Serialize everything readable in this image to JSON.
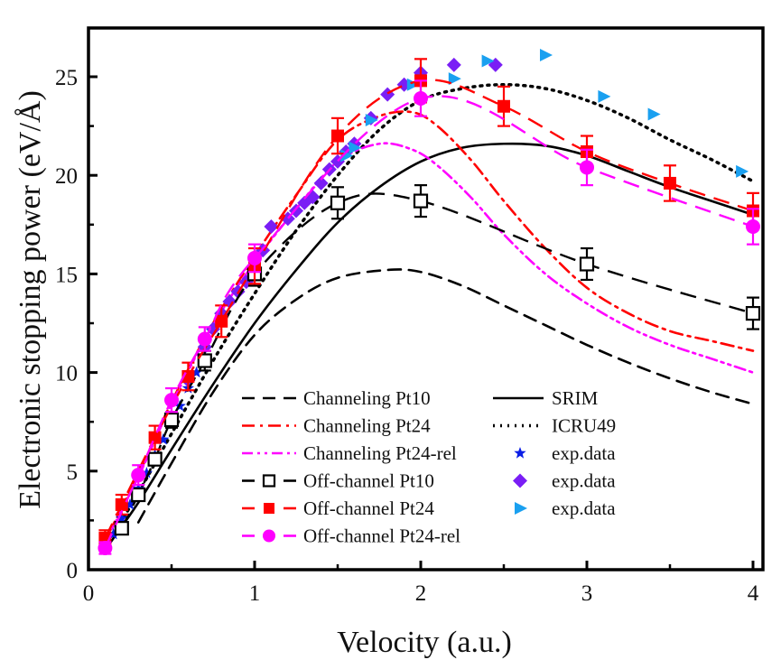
{
  "chart_data": {
    "type": "line",
    "title": "",
    "xlabel": "Velocity (a.u.)",
    "ylabel": "Electronic stopping power (eV/Å)",
    "xlim": [
      0,
      4.06
    ],
    "ylim": [
      0,
      27.5
    ],
    "xticks": [
      0,
      1,
      2,
      3,
      4
    ],
    "xtick_labels": [
      "0",
      "1",
      "2",
      "3",
      "4"
    ],
    "xminor": [
      0.5,
      1.5,
      2.5,
      3.5
    ],
    "yticks": [
      0,
      5,
      10,
      15,
      20,
      25
    ],
    "ytick_labels": [
      "0",
      "5",
      "10",
      "15",
      "20",
      "25"
    ],
    "yminor": [
      2.5,
      7.5,
      12.5,
      17.5,
      22.5
    ],
    "grid": false,
    "legend_position": "bottom-center",
    "series": [
      {
        "name": "Channeling Pt10",
        "kind": "line",
        "style": "dashed",
        "color": "#000000",
        "x": [
          0.3,
          0.5,
          0.75,
          1.0,
          1.25,
          1.5,
          1.8,
          2.0,
          2.25,
          2.5,
          2.75,
          3.0,
          3.25,
          3.5,
          3.75,
          4.0
        ],
        "y": [
          2.4,
          5.4,
          9.0,
          11.9,
          13.7,
          14.8,
          15.2,
          15.1,
          14.4,
          13.4,
          12.4,
          11.4,
          10.5,
          9.7,
          9.0,
          8.4
        ]
      },
      {
        "name": "Channeling Pt24",
        "kind": "line",
        "style": "dash-dot",
        "color": "#ff0000",
        "x": [
          0.1,
          0.3,
          0.5,
          0.75,
          1.0,
          1.25,
          1.5,
          1.75,
          1.95,
          2.1,
          2.3,
          2.5,
          2.75,
          3.0,
          3.25,
          3.5,
          3.75,
          4.0
        ],
        "y": [
          1.5,
          4.8,
          8.5,
          12.5,
          15.9,
          19.0,
          21.8,
          23.0,
          23.2,
          22.5,
          20.8,
          18.7,
          16.3,
          14.3,
          13.0,
          12.1,
          11.6,
          11.1
        ]
      },
      {
        "name": "Channeling Pt24-rel",
        "kind": "line",
        "style": "dash-dot-dot",
        "color": "#ff00ff",
        "x": [
          0.1,
          0.3,
          0.5,
          0.75,
          1.0,
          1.25,
          1.5,
          1.75,
          1.95,
          2.1,
          2.3,
          2.5,
          2.75,
          3.0,
          3.25,
          3.5,
          3.75,
          4.0
        ],
        "y": [
          1.4,
          4.7,
          8.4,
          12.4,
          15.6,
          18.3,
          20.7,
          21.6,
          21.3,
          20.5,
          18.9,
          17.0,
          15.0,
          13.5,
          12.3,
          11.4,
          10.7,
          10.0
        ]
      },
      {
        "name": "SRIM",
        "kind": "line",
        "style": "solid",
        "color": "#000000",
        "x": [
          0.1,
          0.3,
          0.5,
          0.75,
          1.0,
          1.25,
          1.5,
          1.75,
          2.0,
          2.25,
          2.5,
          2.75,
          3.0,
          3.25,
          3.5,
          3.75,
          4.0
        ],
        "y": [
          1.0,
          3.4,
          6.1,
          9.4,
          12.5,
          15.2,
          17.6,
          19.4,
          20.7,
          21.4,
          21.6,
          21.5,
          21.0,
          20.2,
          19.4,
          18.7,
          18.0
        ]
      },
      {
        "name": "ICRU49",
        "kind": "line",
        "style": "dotted",
        "color": "#000000",
        "x": [
          0.1,
          0.3,
          0.5,
          0.75,
          1.0,
          1.25,
          1.5,
          1.75,
          2.0,
          2.25,
          2.5,
          2.75,
          3.0,
          3.25,
          3.5,
          3.75,
          4.0
        ],
        "y": [
          1.1,
          3.9,
          6.9,
          10.6,
          14.0,
          17.2,
          20.0,
          22.3,
          23.8,
          24.4,
          24.6,
          24.4,
          23.8,
          22.9,
          21.8,
          20.8,
          19.7
        ]
      },
      {
        "name": "Off-channel Pt10",
        "kind": "marker-line",
        "style": "long-dash",
        "marker": "open-square",
        "color": "#000000",
        "x": [
          0.2,
          0.3,
          0.4,
          0.5,
          0.7,
          1.0,
          1.5,
          2.0,
          3.0,
          4.0
        ],
        "y": [
          2.1,
          3.8,
          5.6,
          7.6,
          10.6,
          15.0,
          18.6,
          18.7,
          15.5,
          13.0
        ],
        "err": [
          0.3,
          0.3,
          0.3,
          0.4,
          0.5,
          0.6,
          0.8,
          0.8,
          0.8,
          0.8
        ]
      },
      {
        "name": "Off-channel Pt24",
        "kind": "marker-line",
        "style": "long-dash",
        "marker": "filled-square",
        "color": "#ff0000",
        "x": [
          0.1,
          0.2,
          0.4,
          0.6,
          0.8,
          1.0,
          1.5,
          2.0,
          2.5,
          3.0,
          3.5,
          4.0
        ],
        "y": [
          1.6,
          3.3,
          6.7,
          9.8,
          12.6,
          15.4,
          22.0,
          24.8,
          23.5,
          21.2,
          19.6,
          18.2
        ],
        "err": [
          0.4,
          0.5,
          0.6,
          0.7,
          0.8,
          0.9,
          0.9,
          1.1,
          1.0,
          0.8,
          0.9,
          0.9
        ]
      },
      {
        "name": "Off-channel Pt24-rel",
        "kind": "marker-line",
        "style": "long-dash",
        "marker": "filled-circle",
        "color": "#ff00ff",
        "x": [
          0.1,
          0.3,
          0.5,
          0.7,
          1.0,
          2.0,
          3.0,
          4.0
        ],
        "y": [
          1.1,
          4.8,
          8.6,
          11.7,
          15.8,
          23.9,
          20.4,
          17.4
        ],
        "err": [
          0.3,
          0.5,
          0.6,
          0.6,
          0.7,
          0.9,
          0.9,
          0.9
        ]
      },
      {
        "name": "exp.data",
        "kind": "scatter",
        "marker": "star",
        "color": "#0a1ee6",
        "x": [
          0.1,
          0.15,
          0.2,
          0.25,
          0.3,
          0.35,
          0.4,
          0.45,
          0.5,
          0.55,
          0.6,
          0.65
        ],
        "y": [
          1.0,
          1.8,
          2.6,
          3.3,
          4.1,
          4.9,
          5.8,
          6.6,
          7.5,
          8.3,
          9.2,
          10.0
        ]
      },
      {
        "name": "exp.data",
        "kind": "scatter",
        "marker": "diamond",
        "color": "#7a1ef5",
        "x": [
          0.6,
          0.7,
          0.75,
          0.8,
          0.85,
          0.9,
          0.95,
          1.0,
          1.05,
          1.1,
          1.2,
          1.25,
          1.3,
          1.35,
          1.4,
          1.45,
          1.5,
          1.55,
          1.6,
          1.7,
          1.8,
          1.9,
          2.0,
          2.2,
          2.45
        ],
        "y": [
          9.6,
          11.3,
          12.2,
          13.0,
          13.6,
          14.1,
          14.6,
          15.2,
          16.2,
          17.4,
          17.8,
          18.2,
          18.6,
          18.9,
          19.6,
          20.3,
          20.7,
          21.2,
          21.6,
          22.9,
          24.1,
          24.6,
          25.2,
          25.6,
          25.6
        ]
      },
      {
        "name": "exp.data",
        "kind": "scatter",
        "marker": "triangle-right",
        "color": "#1aa0f0",
        "x": [
          1.55,
          1.6,
          1.7,
          1.95,
          2.2,
          2.4,
          2.75,
          3.1,
          3.4,
          3.93
        ],
        "y": [
          21.0,
          21.4,
          22.8,
          24.6,
          24.9,
          25.8,
          26.1,
          24.0,
          23.1,
          20.2
        ]
      }
    ]
  }
}
